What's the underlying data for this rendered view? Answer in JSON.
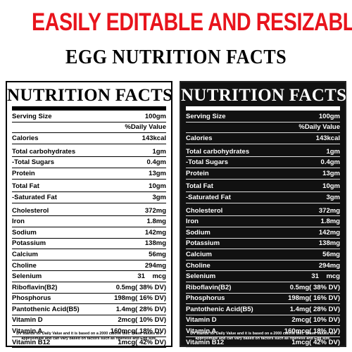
{
  "headline": "EASILY EDITABLE AND RESIZABLA",
  "subheadline": "EGG NUTRITION FACTS",
  "colors": {
    "headline": "#e8141c",
    "light_bg": "#ffffff",
    "dark_bg": "#111111"
  },
  "panel_title": "NUTRITION FACTS",
  "rows": [
    {
      "label": "Serving Size",
      "value": "100gm"
    },
    {
      "label": "",
      "value": "%Daily Value"
    },
    {
      "label": "Calories",
      "value": "143kcal"
    },
    {
      "label": "Total carbohydrates",
      "value": "1gm"
    },
    {
      "label": "-Total Sugars",
      "value": "0.4gm"
    },
    {
      "label": "Protein",
      "value": "13gm"
    },
    {
      "label": "Total Fat",
      "value": "10gm"
    },
    {
      "label": "-Saturated Fat",
      "value": "3gm"
    },
    {
      "label": "Cholesterol",
      "value": "372mg"
    },
    {
      "label": "Iron",
      "value": "1.8mg"
    },
    {
      "label": "Sodium",
      "value": "142mg"
    },
    {
      "label": "Potassium",
      "value": "138mg"
    },
    {
      "label": "Calcium",
      "value": "56mg"
    },
    {
      "label": "Choline",
      "value": "294mg"
    },
    {
      "label": "Selenium",
      "value": "31    mcg"
    },
    {
      "label": "Riboflavin(B2)",
      "value": "0.5mg( 38% DV)"
    },
    {
      "label": "Phosphorus",
      "value": "198mg( 16% DV)"
    },
    {
      "label": "Pantothenic Acid(B5)",
      "value": "1.4mg( 28% DV)"
    },
    {
      "label": "Vitamin D",
      "value": "2mcg( 10% DV)"
    },
    {
      "label": "Vitamin A",
      "value": "160mcg( 18% DV)"
    },
    {
      "label": "Vitamin B12",
      "value": "1mcg( 42% DV)"
    }
  ],
  "footer": "DV stands for Daily Value and it is based on a 2000 calorie diet. These values are approximate and can vary based on factors such as ripeness and Egg size."
}
